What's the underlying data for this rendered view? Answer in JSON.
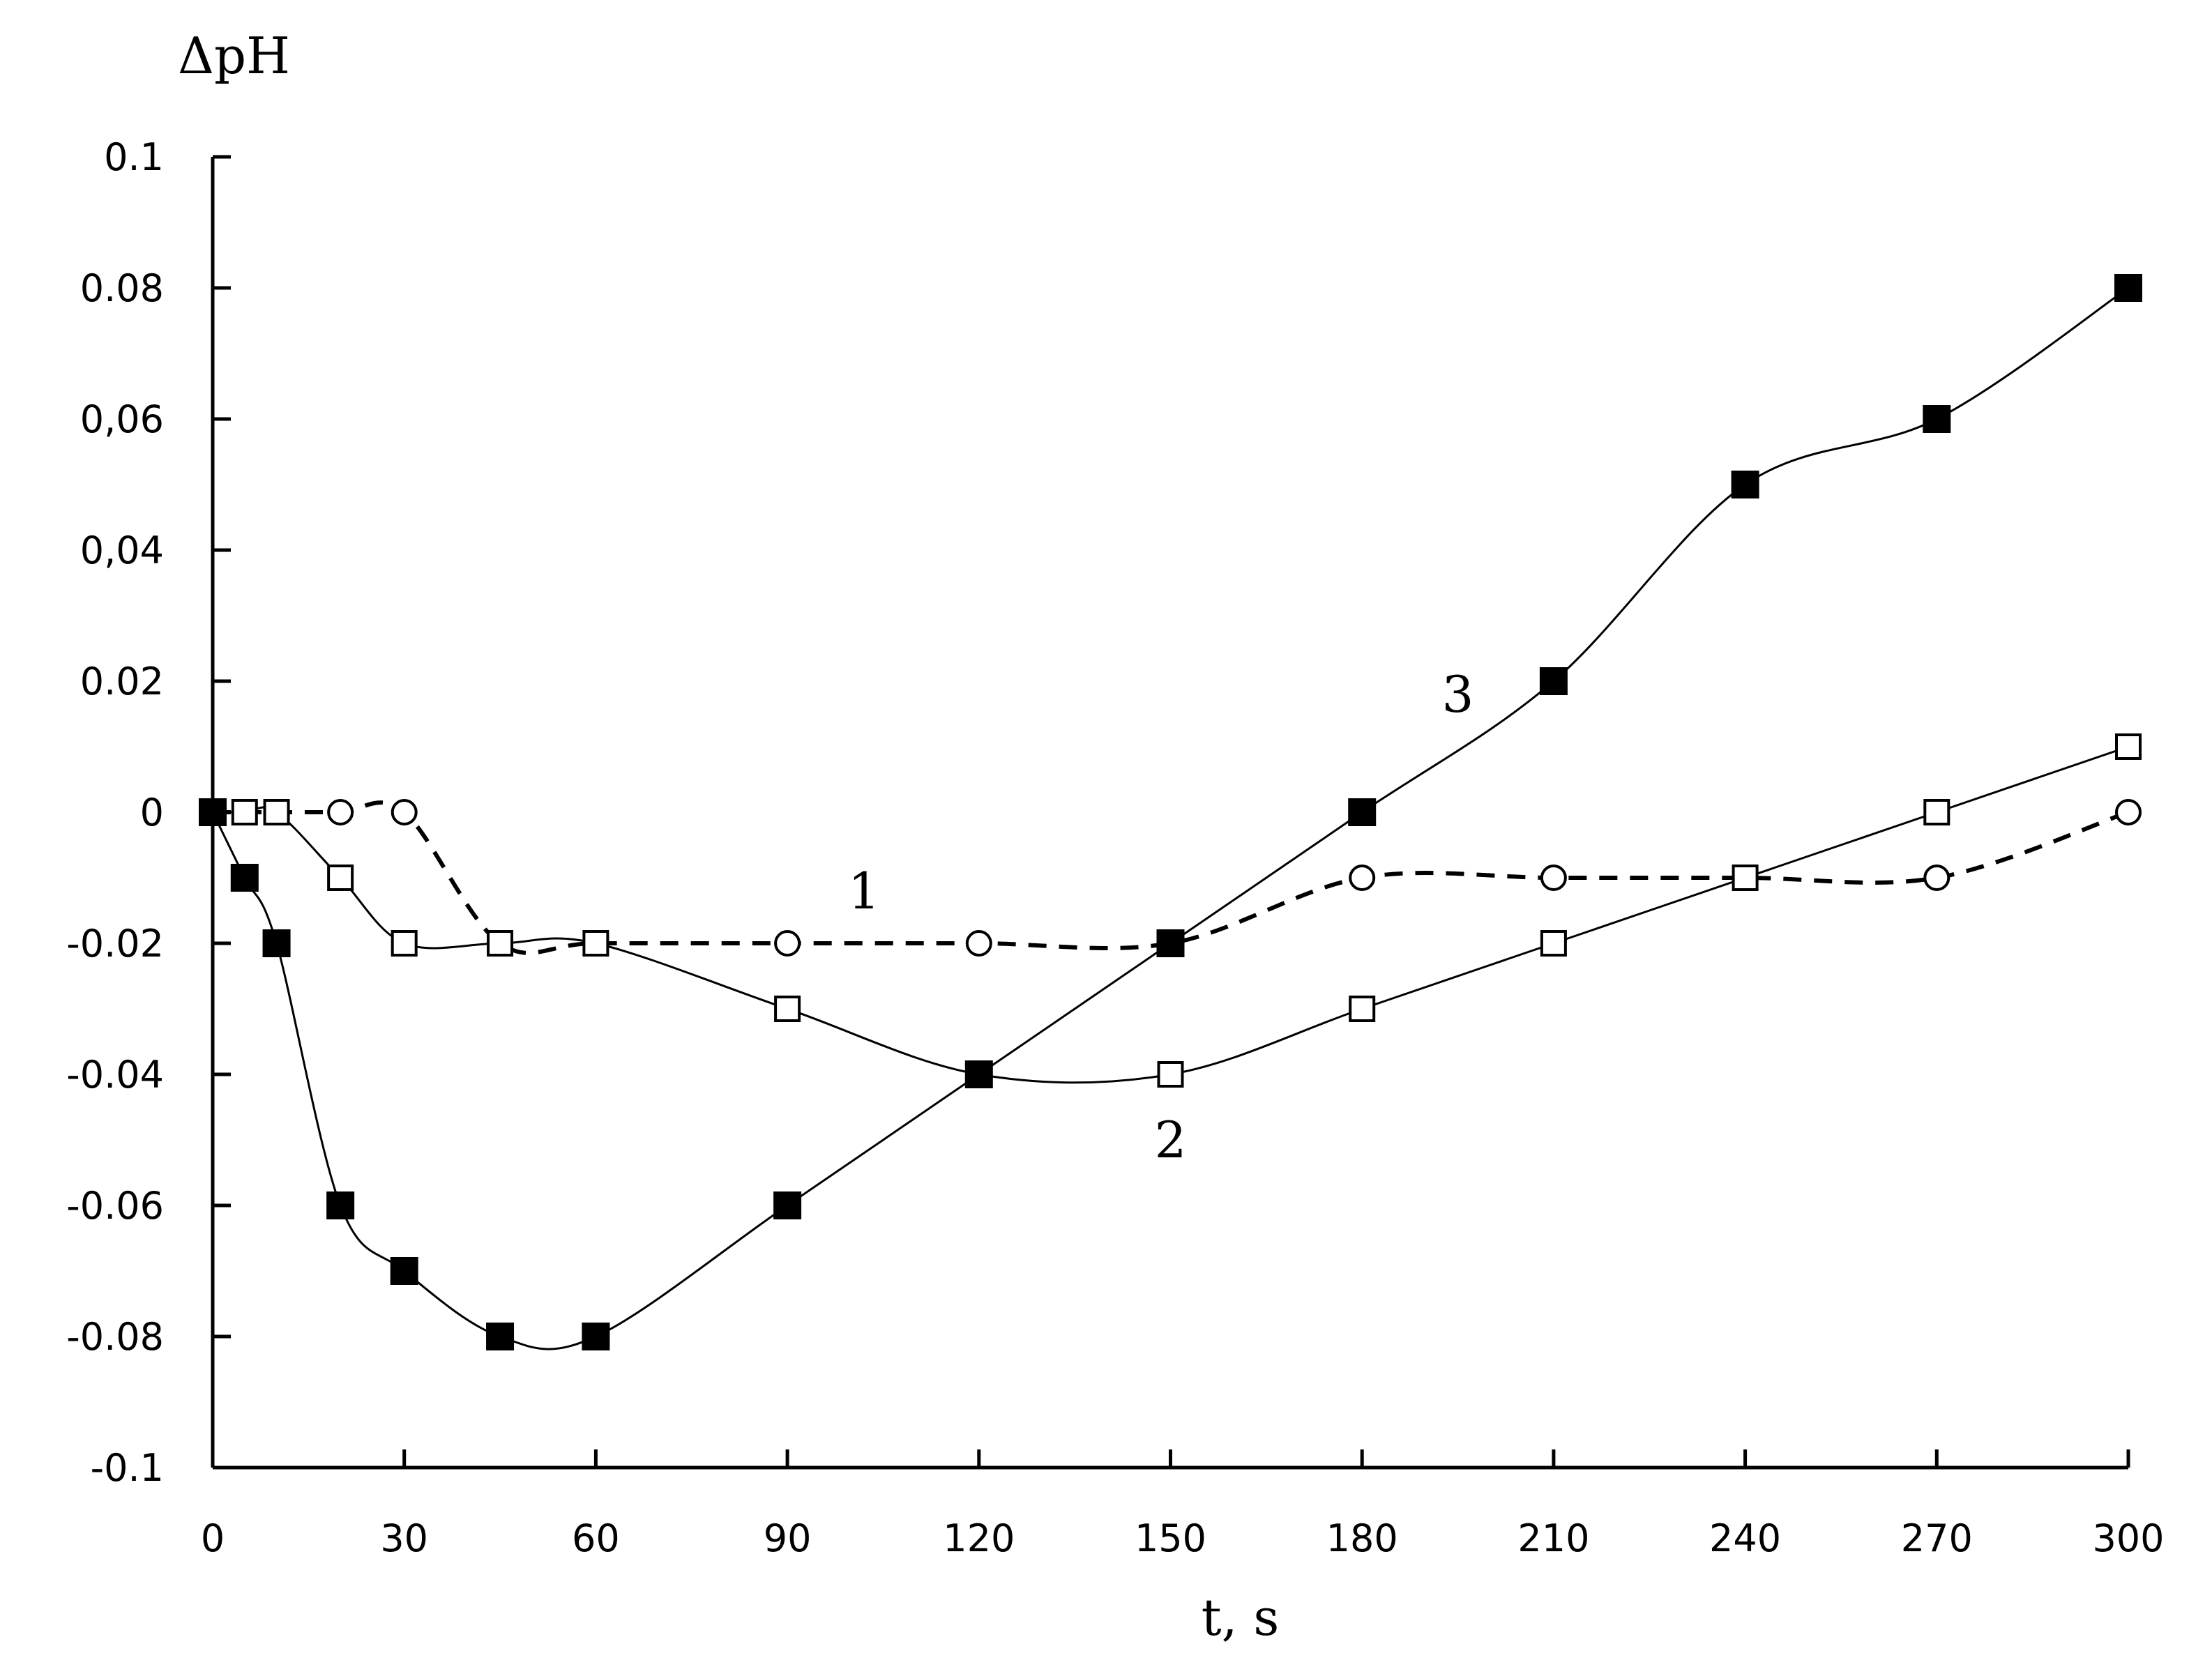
{
  "chart_data": {
    "type": "line",
    "ylabel": "ΔpH",
    "xlabel": "t, s",
    "xlim": [
      0,
      300
    ],
    "ylim": [
      -0.1,
      0.1
    ],
    "x_ticks": [
      0,
      30,
      60,
      90,
      120,
      150,
      180,
      210,
      240,
      270,
      300
    ],
    "x_tick_labels": [
      "0",
      "30",
      "60",
      "90",
      "120",
      "150",
      "180",
      "210",
      "240",
      "270",
      "300"
    ],
    "y_ticks": [
      0.1,
      0.08,
      0.06,
      0.04,
      0.02,
      0,
      -0.02,
      -0.04,
      -0.06,
      -0.08,
      -0.1
    ],
    "y_tick_labels": [
      "0.1",
      "0.08",
      "0,06",
      "0,04",
      "0.02",
      "0",
      "-0.02",
      "-0.04",
      "-0.06",
      "-0.08",
      "-0.1"
    ],
    "grid": false,
    "series": [
      {
        "name": "1",
        "marker": "open-circle",
        "line": "dashed",
        "x": [
          0,
          5,
          10,
          20,
          30,
          45,
          60,
          90,
          120,
          150,
          180,
          210,
          240,
          270,
          300
        ],
        "y": [
          0,
          0,
          0,
          0,
          0,
          -0.02,
          -0.02,
          -0.02,
          -0.02,
          -0.02,
          -0.01,
          -0.01,
          -0.01,
          -0.01,
          0
        ],
        "label_at": [
          102,
          -0.012
        ]
      },
      {
        "name": "2",
        "marker": "open-square",
        "line": "solid",
        "x": [
          0,
          5,
          10,
          20,
          30,
          45,
          60,
          90,
          120,
          150,
          180,
          210,
          240,
          270,
          300
        ],
        "y": [
          0,
          0,
          0,
          -0.01,
          -0.02,
          -0.02,
          -0.02,
          -0.03,
          -0.04,
          -0.04,
          -0.03,
          -0.02,
          -0.01,
          0,
          0.01
        ],
        "label_at": [
          150,
          -0.05
        ]
      },
      {
        "name": "3",
        "marker": "filled-square",
        "line": "solid",
        "x": [
          0,
          5,
          10,
          20,
          30,
          45,
          60,
          90,
          120,
          150,
          180,
          210,
          240,
          270,
          300
        ],
        "y": [
          0,
          -0.01,
          -0.02,
          -0.06,
          -0.07,
          -0.08,
          -0.08,
          -0.06,
          -0.04,
          -0.02,
          0,
          0.02,
          0.05,
          0.06,
          0.08
        ],
        "label_at": [
          195,
          0.018
        ]
      }
    ]
  }
}
